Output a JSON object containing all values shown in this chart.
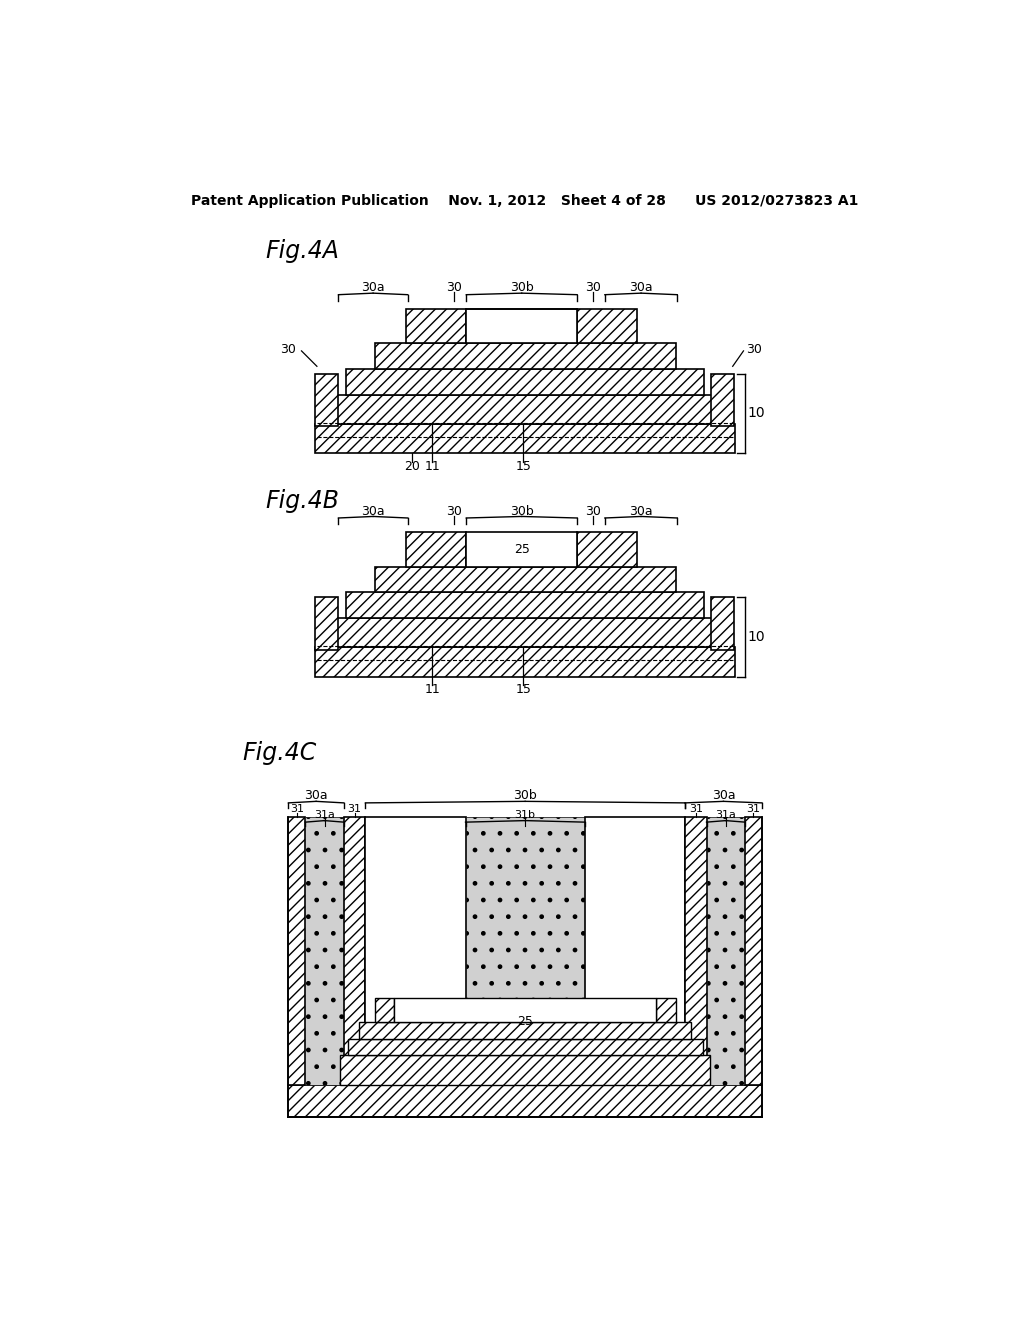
{
  "bg": "#ffffff",
  "header": "Patent Application Publication    Nov. 1, 2012   Sheet 4 of 28      US 2012/0273823 A1"
}
